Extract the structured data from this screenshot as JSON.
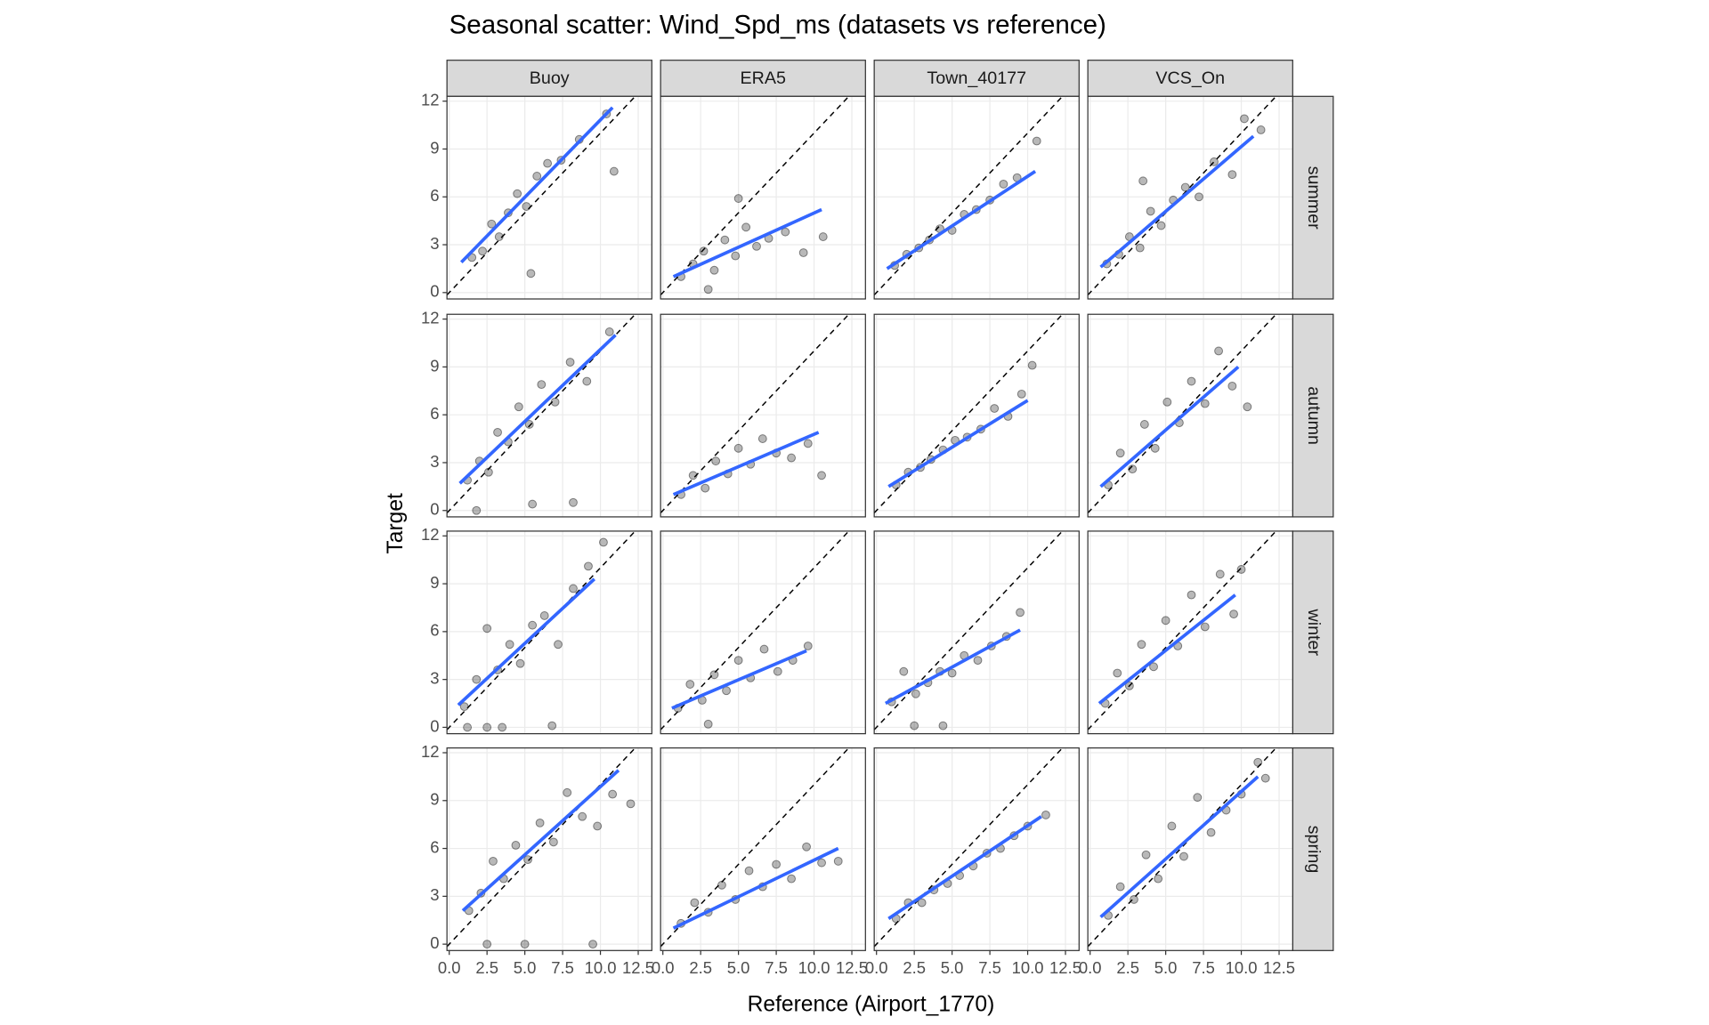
{
  "chart_data": {
    "type": "scatter",
    "title": "Seasonal scatter: Wind_Spd_ms (datasets vs reference)",
    "x_label": "Reference (Airport_1770)",
    "y_label": "Target",
    "columns": [
      "Buoy",
      "ERA5",
      "Town_40177",
      "VCS_On"
    ],
    "rows": [
      "summer",
      "autumn",
      "winter",
      "spring"
    ],
    "xlim": [
      -0.15,
      13.4
    ],
    "ylim": [
      -0.4,
      12.3
    ],
    "xticks": [
      {
        "value": 0,
        "label": "0.0"
      },
      2.5,
      {
        "value": 5,
        "label": "5.0"
      },
      7.5,
      {
        "value": 10,
        "label": "10.0"
      },
      12.5
    ],
    "yticks": [
      0,
      3,
      6,
      9,
      12
    ],
    "grid": true,
    "point_color": "#000000",
    "fit_color": "#3366ff",
    "identity_line": true,
    "panels": [
      {
        "x": [
          1.5,
          2.2,
          2.8,
          3.3,
          3.9,
          4.5,
          5.1,
          5.8,
          6.5,
          7.4,
          8.6,
          10.4,
          5.4,
          10.9
        ],
        "y": [
          2.2,
          2.6,
          4.3,
          3.5,
          5.0,
          6.2,
          5.4,
          7.3,
          8.1,
          8.3,
          9.6,
          11.2,
          1.2,
          7.6
        ],
        "fit": {
          "x": [
            0.8,
            10.8
          ],
          "y": [
            1.9,
            11.6
          ]
        }
      },
      {
        "x": [
          1.2,
          2.0,
          2.7,
          3.4,
          4.1,
          4.8,
          5.5,
          6.2,
          7.0,
          8.1,
          9.3,
          10.6,
          3.0,
          5.0
        ],
        "y": [
          1.0,
          1.8,
          2.6,
          1.4,
          3.3,
          2.3,
          4.1,
          2.9,
          3.4,
          3.8,
          2.5,
          3.5,
          0.2,
          5.9
        ],
        "fit": {
          "x": [
            0.7,
            10.5
          ],
          "y": [
            1.0,
            5.2
          ]
        }
      },
      {
        "x": [
          1.2,
          2.0,
          2.8,
          3.5,
          4.2,
          5.0,
          5.8,
          6.6,
          7.5,
          8.4,
          9.3,
          10.6
        ],
        "y": [
          1.7,
          2.4,
          2.8,
          3.3,
          4.0,
          3.9,
          4.9,
          5.2,
          5.8,
          6.8,
          7.2,
          9.5
        ],
        "fit": {
          "x": [
            0.7,
            10.5
          ],
          "y": [
            1.5,
            7.6
          ]
        }
      },
      {
        "x": [
          1.1,
          1.9,
          2.6,
          3.3,
          4.0,
          4.7,
          5.5,
          6.3,
          7.2,
          8.2,
          9.4,
          10.2,
          11.3,
          3.5
        ],
        "y": [
          1.8,
          2.4,
          3.5,
          2.8,
          5.1,
          4.2,
          5.8,
          6.6,
          6.0,
          8.2,
          7.4,
          10.9,
          10.2,
          7.0
        ],
        "fit": {
          "x": [
            0.7,
            10.8
          ],
          "y": [
            1.6,
            9.8
          ]
        }
      },
      {
        "x": [
          1.2,
          2.0,
          2.6,
          3.2,
          3.9,
          4.6,
          5.3,
          6.1,
          7.0,
          8.0,
          9.1,
          10.6,
          1.8,
          5.5,
          8.2
        ],
        "y": [
          1.9,
          3.1,
          2.4,
          4.9,
          4.3,
          6.5,
          5.4,
          7.9,
          6.8,
          9.3,
          8.1,
          11.2,
          0.0,
          0.4,
          0.5
        ],
        "fit": {
          "x": [
            0.7,
            11.0
          ],
          "y": [
            1.7,
            11.0
          ]
        }
      },
      {
        "x": [
          1.2,
          2.0,
          2.8,
          3.5,
          4.3,
          5.0,
          5.8,
          6.6,
          7.5,
          8.5,
          9.6,
          10.5
        ],
        "y": [
          1.0,
          2.2,
          1.4,
          3.1,
          2.3,
          3.9,
          2.9,
          4.5,
          3.6,
          3.3,
          4.2,
          2.2
        ],
        "fit": {
          "x": [
            0.7,
            10.3
          ],
          "y": [
            1.0,
            4.9
          ]
        }
      },
      {
        "x": [
          1.3,
          2.1,
          2.9,
          3.6,
          4.4,
          5.2,
          6.0,
          6.9,
          7.8,
          8.7,
          9.6,
          10.3
        ],
        "y": [
          1.6,
          2.4,
          2.7,
          3.2,
          3.8,
          4.4,
          4.6,
          5.1,
          6.4,
          5.9,
          7.3,
          9.1
        ],
        "fit": {
          "x": [
            0.8,
            10.0
          ],
          "y": [
            1.5,
            6.9
          ]
        }
      },
      {
        "x": [
          1.2,
          2.0,
          2.8,
          3.6,
          4.3,
          5.1,
          5.9,
          6.7,
          7.6,
          8.5,
          9.4,
          10.4
        ],
        "y": [
          1.6,
          3.6,
          2.6,
          5.4,
          3.9,
          6.8,
          5.5,
          8.1,
          6.7,
          10.0,
          7.8,
          6.5
        ],
        "fit": {
          "x": [
            0.7,
            9.8
          ],
          "y": [
            1.5,
            9.0
          ]
        }
      },
      {
        "x": [
          1.0,
          1.8,
          2.5,
          3.2,
          4.0,
          4.7,
          5.5,
          6.3,
          7.2,
          8.2,
          9.2,
          10.2,
          1.2,
          2.5,
          3.5,
          6.8
        ],
        "y": [
          1.3,
          3.0,
          6.2,
          3.6,
          5.2,
          4.0,
          6.4,
          7.0,
          5.2,
          8.7,
          10.1,
          11.6,
          0.0,
          0.0,
          0.0,
          0.1
        ],
        "fit": {
          "x": [
            0.6,
            9.6
          ],
          "y": [
            1.4,
            9.3
          ]
        }
      },
      {
        "x": [
          1.0,
          1.8,
          2.6,
          3.4,
          4.2,
          5.0,
          5.8,
          6.7,
          7.6,
          8.6,
          9.6,
          3.0
        ],
        "y": [
          1.2,
          2.7,
          1.7,
          3.3,
          2.3,
          4.2,
          3.1,
          4.9,
          3.5,
          4.2,
          5.1,
          0.2
        ],
        "fit": {
          "x": [
            0.6,
            9.5
          ],
          "y": [
            1.2,
            4.8
          ]
        }
      },
      {
        "x": [
          1.0,
          1.8,
          2.6,
          3.4,
          4.2,
          5.0,
          5.8,
          6.7,
          7.6,
          8.6,
          9.5,
          2.5,
          4.4
        ],
        "y": [
          1.6,
          3.5,
          2.1,
          2.8,
          3.5,
          3.4,
          4.5,
          4.2,
          5.1,
          5.7,
          7.2,
          0.1,
          0.1
        ],
        "fit": {
          "x": [
            0.6,
            9.5
          ],
          "y": [
            1.5,
            6.1
          ]
        }
      },
      {
        "x": [
          1.0,
          1.8,
          2.6,
          3.4,
          4.2,
          5.0,
          5.8,
          6.7,
          7.6,
          8.6,
          9.5,
          10.0
        ],
        "y": [
          1.5,
          3.4,
          2.6,
          5.2,
          3.8,
          6.7,
          5.1,
          8.3,
          6.3,
          9.6,
          7.1,
          9.9
        ],
        "fit": {
          "x": [
            0.6,
            9.6
          ],
          "y": [
            1.5,
            8.3
          ]
        }
      },
      {
        "x": [
          1.3,
          2.1,
          2.9,
          3.6,
          4.4,
          5.2,
          6.0,
          6.9,
          7.8,
          8.8,
          9.8,
          10.8,
          12.0,
          2.5,
          5.0,
          9.5
        ],
        "y": [
          2.1,
          3.2,
          5.2,
          4.1,
          6.2,
          5.3,
          7.6,
          6.4,
          9.5,
          8.0,
          7.4,
          9.4,
          8.8,
          0.0,
          0.0,
          0.0
        ],
        "fit": {
          "x": [
            0.9,
            11.2
          ],
          "y": [
            2.1,
            10.9
          ]
        }
      },
      {
        "x": [
          1.2,
          2.1,
          3.0,
          3.9,
          4.8,
          5.7,
          6.6,
          7.5,
          8.5,
          9.5,
          10.5,
          11.6
        ],
        "y": [
          1.3,
          2.6,
          2.0,
          3.7,
          2.8,
          4.6,
          3.6,
          5.0,
          4.1,
          6.1,
          5.1,
          5.2
        ],
        "fit": {
          "x": [
            0.7,
            11.6
          ],
          "y": [
            1.0,
            6.0
          ]
        }
      },
      {
        "x": [
          1.3,
          2.1,
          3.0,
          3.8,
          4.7,
          5.5,
          6.4,
          7.3,
          8.2,
          9.1,
          10.0,
          11.2
        ],
        "y": [
          1.6,
          2.6,
          2.6,
          3.4,
          3.8,
          4.3,
          4.9,
          5.7,
          6.0,
          6.8,
          7.4,
          8.1
        ],
        "fit": {
          "x": [
            0.8,
            10.9
          ],
          "y": [
            1.6,
            8.0
          ]
        }
      },
      {
        "x": [
          1.2,
          2.0,
          2.9,
          3.7,
          4.5,
          5.4,
          6.2,
          7.1,
          8.0,
          9.0,
          10.0,
          11.6,
          11.1
        ],
        "y": [
          1.8,
          3.6,
          2.8,
          5.6,
          4.1,
          7.4,
          5.5,
          9.2,
          7.0,
          8.4,
          9.4,
          10.4,
          11.4
        ],
        "fit": {
          "x": [
            0.7,
            11.1
          ],
          "y": [
            1.7,
            10.5
          ]
        }
      }
    ]
  }
}
